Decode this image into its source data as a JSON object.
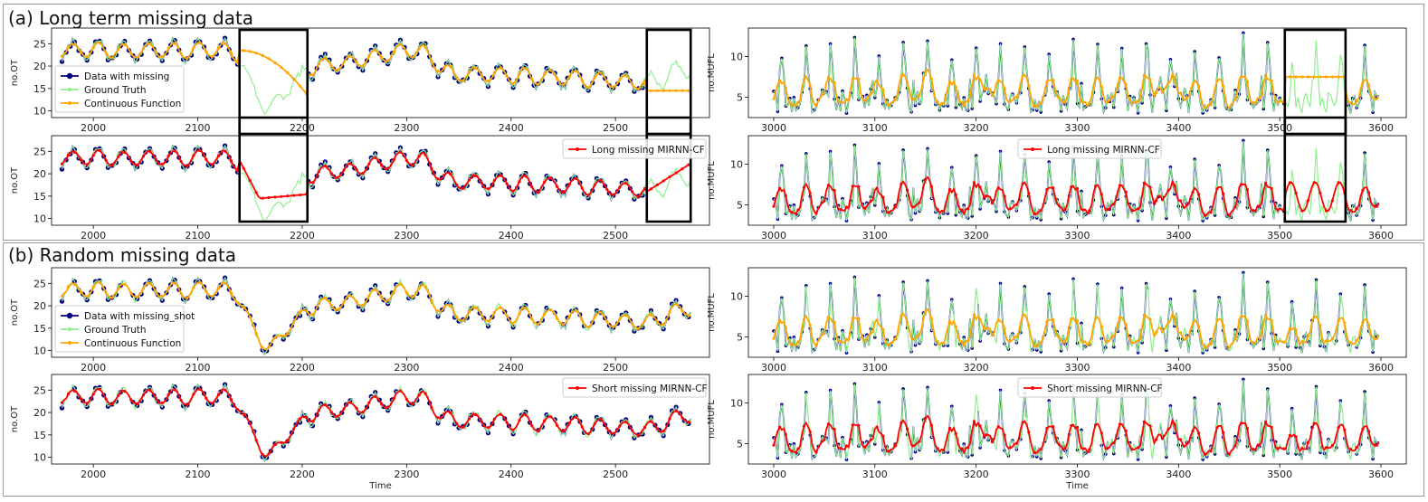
{
  "sections": {
    "a_title": "(a) Long term missing data",
    "b_title": "(b) Random missing data"
  },
  "colors": {
    "missing": "#000080",
    "truth": "#90ee90",
    "continuous": "#ffa500",
    "mirnn": "#ff0000",
    "box": "#000000"
  },
  "chart_data": [
    {
      "id": "a-ot-top",
      "type": "line",
      "signal": "OT",
      "mode": "long",
      "xlim": [
        1960,
        2590
      ],
      "ylim": [
        8.5,
        28.5
      ],
      "xticks": [
        2000,
        2100,
        2200,
        2300,
        2400,
        2500
      ],
      "yticks": [
        10,
        15,
        20,
        25
      ],
      "ylabel": "no.OT",
      "xlabel": "",
      "series": [
        "Data with missing",
        "Ground Truth",
        "Continuous Function"
      ],
      "legend": [
        "Data with missing",
        "Ground Truth",
        "Continuous Function"
      ],
      "legend_loc": "lower-left",
      "missing_ranges": [
        [
          2140,
          2205
        ],
        [
          2530,
          2572
        ]
      ]
    },
    {
      "id": "a-ot-bot",
      "type": "line",
      "signal": "OT",
      "mode": "long",
      "xlim": [
        1960,
        2590
      ],
      "ylim": [
        8.5,
        28.5
      ],
      "xticks": [
        2000,
        2100,
        2200,
        2300,
        2400,
        2500
      ],
      "yticks": [
        10,
        15,
        20,
        25
      ],
      "ylabel": "no.OT",
      "xlabel": "",
      "series": [
        "Data with missing",
        "Ground Truth",
        "Long missing MIRNN-CF"
      ],
      "legend": [
        "Long missing MIRNN-CF"
      ],
      "legend_loc": "upper-right",
      "missing_ranges": [
        [
          2140,
          2205
        ],
        [
          2530,
          2572
        ]
      ]
    },
    {
      "id": "a-mufl-top",
      "type": "line",
      "signal": "MUFL",
      "mode": "long",
      "xlim": [
        2975,
        3625
      ],
      "ylim": [
        2.5,
        13.5
      ],
      "xticks": [
        3000,
        3100,
        3200,
        3300,
        3400,
        3500,
        3600
      ],
      "yticks": [
        5,
        10
      ],
      "ylabel": "no.MUFL",
      "xlabel": "",
      "series": [
        "Data with missing",
        "Ground Truth",
        "Continuous Function"
      ],
      "legend": [],
      "legend_loc": "none",
      "missing_ranges": [
        [
          3505,
          3565
        ]
      ]
    },
    {
      "id": "a-mufl-bot",
      "type": "line",
      "signal": "MUFL",
      "mode": "long",
      "xlim": [
        2975,
        3625
      ],
      "ylim": [
        2.5,
        13.5
      ],
      "xticks": [
        3000,
        3100,
        3200,
        3300,
        3400,
        3500,
        3600
      ],
      "yticks": [
        5,
        10
      ],
      "ylabel": "no.MUFL",
      "xlabel": "",
      "series": [
        "Data with missing",
        "Ground Truth",
        "Long missing MIRNN-CF"
      ],
      "legend": [
        "Long missing MIRNN-CF"
      ],
      "legend_loc": "upper-center",
      "missing_ranges": [
        [
          3505,
          3565
        ]
      ]
    },
    {
      "id": "b-ot-top",
      "type": "line",
      "signal": "OT",
      "mode": "short",
      "xlim": [
        1960,
        2590
      ],
      "ylim": [
        8.5,
        28.5
      ],
      "xticks": [
        2000,
        2100,
        2200,
        2300,
        2400,
        2500
      ],
      "yticks": [
        10,
        15,
        20,
        25
      ],
      "ylabel": "no.OT",
      "xlabel": "",
      "series": [
        "Data with missing_shot",
        "Ground Truth",
        "Continuous Function"
      ],
      "legend": [
        "Data with missing_shot",
        "Ground Truth",
        "Continuous Function"
      ],
      "legend_loc": "lower-left",
      "missing_ranges": []
    },
    {
      "id": "b-ot-bot",
      "type": "line",
      "signal": "OT",
      "mode": "short",
      "xlim": [
        1960,
        2590
      ],
      "ylim": [
        8.5,
        28.5
      ],
      "xticks": [
        2000,
        2100,
        2200,
        2300,
        2400,
        2500
      ],
      "yticks": [
        10,
        15,
        20,
        25
      ],
      "ylabel": "no.OT",
      "xlabel": "Time",
      "series": [
        "Data with missing_shot",
        "Ground Truth",
        "Short missing MIRNN-CF"
      ],
      "legend": [
        "Short missing MIRNN-CF"
      ],
      "legend_loc": "upper-right",
      "missing_ranges": []
    },
    {
      "id": "b-mufl-top",
      "type": "line",
      "signal": "MUFL",
      "mode": "short",
      "xlim": [
        2975,
        3625
      ],
      "ylim": [
        2.5,
        13.5
      ],
      "xticks": [
        3000,
        3100,
        3200,
        3300,
        3400,
        3500,
        3600
      ],
      "yticks": [
        5,
        10
      ],
      "ylabel": "no.MUFL",
      "xlabel": "",
      "series": [
        "Data with missing_shot",
        "Ground Truth",
        "Continuous Function"
      ],
      "legend": [],
      "legend_loc": "none",
      "missing_ranges": []
    },
    {
      "id": "b-mufl-bot",
      "type": "line",
      "signal": "MUFL",
      "mode": "short",
      "xlim": [
        2975,
        3625
      ],
      "ylim": [
        2.5,
        13.5
      ],
      "xticks": [
        3000,
        3100,
        3200,
        3300,
        3400,
        3500,
        3600
      ],
      "yticks": [
        5,
        10
      ],
      "ylabel": "no.MUFL",
      "xlabel": "Time",
      "series": [
        "Data with missing_shot",
        "Ground Truth",
        "Short missing MIRNN-CF"
      ],
      "legend": [
        "Short missing MIRNN-CF"
      ],
      "legend_loc": "upper-center",
      "missing_ranges": []
    }
  ]
}
